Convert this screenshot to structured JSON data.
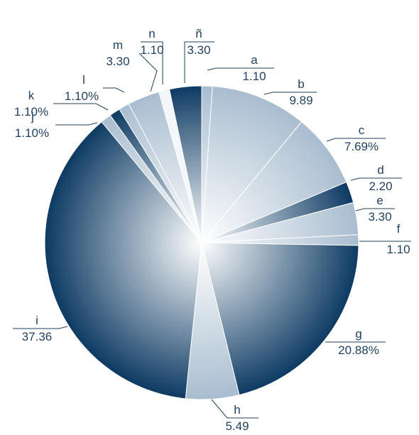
{
  "chart_data": {
    "type": "pie",
    "title": "",
    "start_angle_deg": 0,
    "direction": "clockwise",
    "slices": [
      {
        "name": "a",
        "value": 1.1,
        "value_label": "1.10",
        "style": "light"
      },
      {
        "name": "b",
        "value": 9.89,
        "value_label": "9.89",
        "style": "light"
      },
      {
        "name": "c",
        "value": 7.69,
        "value_label": "7.69%",
        "style": "light"
      },
      {
        "name": "d",
        "value": 2.2,
        "value_label": "2.20",
        "style": "dark"
      },
      {
        "name": "e",
        "value": 3.3,
        "value_label": "3.30",
        "style": "light"
      },
      {
        "name": "f",
        "value": 1.1,
        "value_label": "1.10",
        "style": "light"
      },
      {
        "name": "g",
        "value": 20.88,
        "value_label": "20.88%",
        "style": "dark"
      },
      {
        "name": "h",
        "value": 5.49,
        "value_label": "5.49",
        "style": "light"
      },
      {
        "name": "i",
        "value": 37.36,
        "value_label": "37.36",
        "style": "dark"
      },
      {
        "name": "j",
        "value": 1.1,
        "value_label": "1.10%",
        "style": "light"
      },
      {
        "name": "k",
        "value": 1.1,
        "value_label": "1.10%",
        "style": "dark"
      },
      {
        "name": "l",
        "value": 1.1,
        "value_label": "1.10%",
        "style": "light"
      },
      {
        "name": "m",
        "value": 3.3,
        "value_label": "3.30",
        "style": "light"
      },
      {
        "name": "n",
        "value": 1.1,
        "value_label": "1.10",
        "style": "white"
      },
      {
        "name": "ñ",
        "value": 3.3,
        "value_label": "3.30",
        "style": "dark"
      }
    ],
    "colors": {
      "dark_edge": "#0d3a63",
      "light_edge": "#a9bdd0",
      "center": "#ffffff",
      "text": "#1e3f5e",
      "slice_border": "#ffffff"
    }
  }
}
